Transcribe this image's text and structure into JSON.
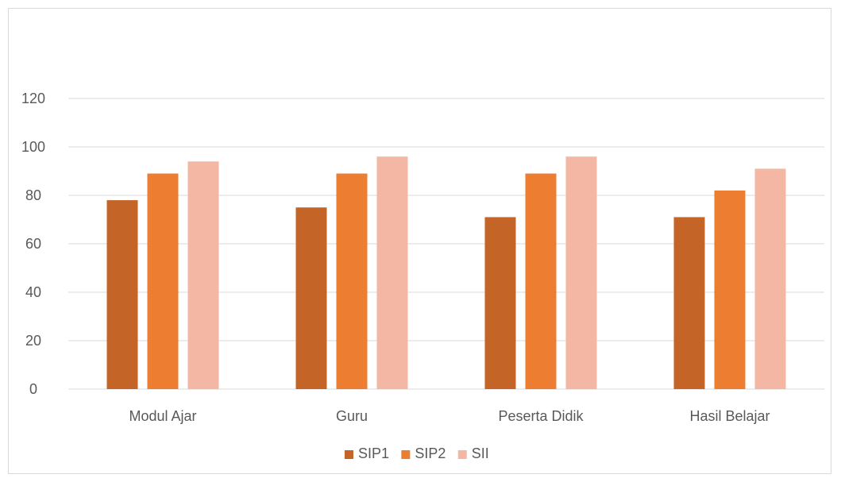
{
  "chart_data": {
    "type": "bar",
    "categories": [
      "Modul Ajar",
      "Guru",
      "Peserta Didik",
      "Hasil Belajar"
    ],
    "series": [
      {
        "name": "SIP1",
        "values": [
          78,
          75,
          71,
          71
        ],
        "color": "#c46527"
      },
      {
        "name": "SIP2",
        "values": [
          89,
          89,
          89,
          82
        ],
        "color": "#ed7d31"
      },
      {
        "name": "SII",
        "values": [
          94,
          96,
          96,
          91
        ],
        "color": "#f4b7a3"
      }
    ],
    "ylim": [
      0,
      120
    ],
    "yticks": [
      0,
      20,
      40,
      60,
      80,
      100,
      120
    ],
    "title": "",
    "xlabel": "",
    "ylabel": "",
    "grid": true,
    "legend_position": "bottom",
    "gridline_color": "#d9d9d9"
  }
}
